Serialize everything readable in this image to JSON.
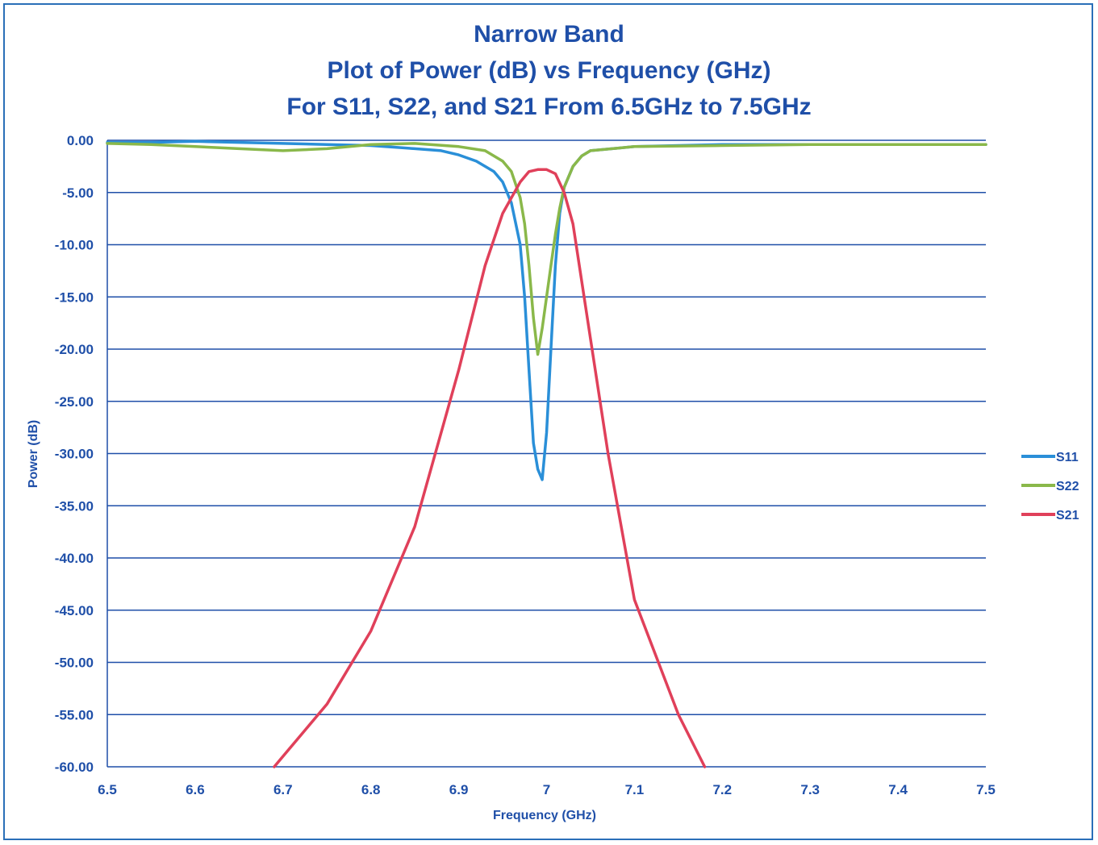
{
  "chart_data": {
    "type": "line",
    "title": [
      "Narrow Band",
      "Plot of Power (dB) vs Frequency (GHz)",
      "For S11, S22, and S21 From 6.5GHz to 7.5GHz"
    ],
    "xlabel": "Frequency (GHz)",
    "ylabel": "Power (dB)",
    "xlim": [
      6.5,
      7.5
    ],
    "ylim": [
      -60,
      0
    ],
    "x_ticks": [
      "6.5",
      "6.6",
      "6.7",
      "6.8",
      "6.9",
      "7",
      "7.1",
      "7.2",
      "7.3",
      "7.4",
      "7.5"
    ],
    "y_ticks": [
      "0.00",
      "-5.00",
      "-10.00",
      "-15.00",
      "-20.00",
      "-25.00",
      "-30.00",
      "-35.00",
      "-40.00",
      "-45.00",
      "-50.00",
      "-55.00",
      "-60.00"
    ],
    "grid": "horizontal",
    "legend_position": "right",
    "series": [
      {
        "name": "S11",
        "color": "#2a8fd8",
        "x": [
          6.5,
          6.55,
          6.6,
          6.65,
          6.7,
          6.75,
          6.8,
          6.85,
          6.88,
          6.9,
          6.92,
          6.94,
          6.95,
          6.96,
          6.97,
          6.975,
          6.98,
          6.985,
          6.99,
          6.995,
          7.0,
          7.005,
          7.01,
          7.015,
          7.02,
          7.03,
          7.04,
          7.05,
          7.1,
          7.2,
          7.3,
          7.4,
          7.5
        ],
        "y": [
          -0.2,
          -0.2,
          -0.1,
          -0.2,
          -0.3,
          -0.4,
          -0.5,
          -0.8,
          -1.0,
          -1.4,
          -2.0,
          -3.0,
          -4.0,
          -6.0,
          -10.0,
          -15.0,
          -22.0,
          -29.0,
          -31.5,
          -32.5,
          -28.0,
          -20.0,
          -12.0,
          -7.0,
          -4.5,
          -2.5,
          -1.5,
          -1.0,
          -0.6,
          -0.4,
          -0.4,
          -0.4,
          -0.4
        ]
      },
      {
        "name": "S22",
        "color": "#8ab84a",
        "x": [
          6.5,
          6.55,
          6.6,
          6.65,
          6.7,
          6.75,
          6.8,
          6.85,
          6.9,
          6.93,
          6.95,
          6.96,
          6.97,
          6.975,
          6.98,
          6.985,
          6.99,
          6.995,
          7.0,
          7.005,
          7.01,
          7.015,
          7.02,
          7.03,
          7.04,
          7.05,
          7.1,
          7.2,
          7.3,
          7.4,
          7.5
        ],
        "y": [
          -0.3,
          -0.4,
          -0.6,
          -0.8,
          -1.0,
          -0.8,
          -0.4,
          -0.3,
          -0.6,
          -1.0,
          -2.0,
          -3.0,
          -5.5,
          -8.0,
          -12.0,
          -17.0,
          -20.5,
          -18.0,
          -15.0,
          -12.0,
          -9.0,
          -6.5,
          -4.5,
          -2.5,
          -1.5,
          -1.0,
          -0.6,
          -0.5,
          -0.4,
          -0.4,
          -0.4
        ]
      },
      {
        "name": "S21",
        "color": "#e0405a",
        "x": [
          6.69,
          6.7,
          6.72,
          6.75,
          6.8,
          6.85,
          6.9,
          6.93,
          6.95,
          6.97,
          6.98,
          6.99,
          7.0,
          7.01,
          7.02,
          7.03,
          7.05,
          7.07,
          7.1,
          7.15,
          7.18
        ],
        "y": [
          -60.0,
          -59.0,
          -57.0,
          -54.0,
          -47.0,
          -37.0,
          -22.0,
          -12.0,
          -7.0,
          -4.0,
          -3.0,
          -2.8,
          -2.8,
          -3.2,
          -5.0,
          -8.0,
          -19.0,
          -30.0,
          -44.0,
          -55.0,
          -60.0
        ]
      }
    ]
  }
}
